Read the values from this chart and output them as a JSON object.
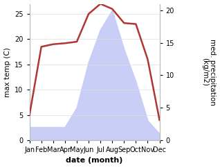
{
  "months": [
    "Jan",
    "Feb",
    "Mar",
    "Apr",
    "May",
    "Jun",
    "Jul",
    "Aug",
    "Sep",
    "Oct",
    "Nov",
    "Dec"
  ],
  "month_indices": [
    1,
    2,
    3,
    4,
    5,
    6,
    7,
    8,
    9,
    10,
    11,
    12
  ],
  "temperature": [
    5,
    18.5,
    19,
    19.2,
    19.5,
    25,
    27,
    26,
    23.2,
    23,
    16,
    4
  ],
  "precipitation": [
    2,
    2,
    2,
    2,
    5,
    12,
    17,
    20,
    14,
    9,
    3,
    1
  ],
  "temp_color": "#b03535",
  "precip_fill_color": "#c8cef5",
  "temp_ylim": [
    0,
    27
  ],
  "precip_ylim": [
    0,
    21
  ],
  "temp_yticks": [
    0,
    5,
    10,
    15,
    20,
    25
  ],
  "precip_yticks": [
    0,
    5,
    10,
    15,
    20
  ],
  "xlabel": "date (month)",
  "ylabel_left": "max temp (C)",
  "ylabel_right": "med. precipitation\n(kg/m2)",
  "background_color": "#ffffff",
  "axis_fontsize": 7.5,
  "tick_fontsize": 7,
  "xlabel_fontsize": 8
}
